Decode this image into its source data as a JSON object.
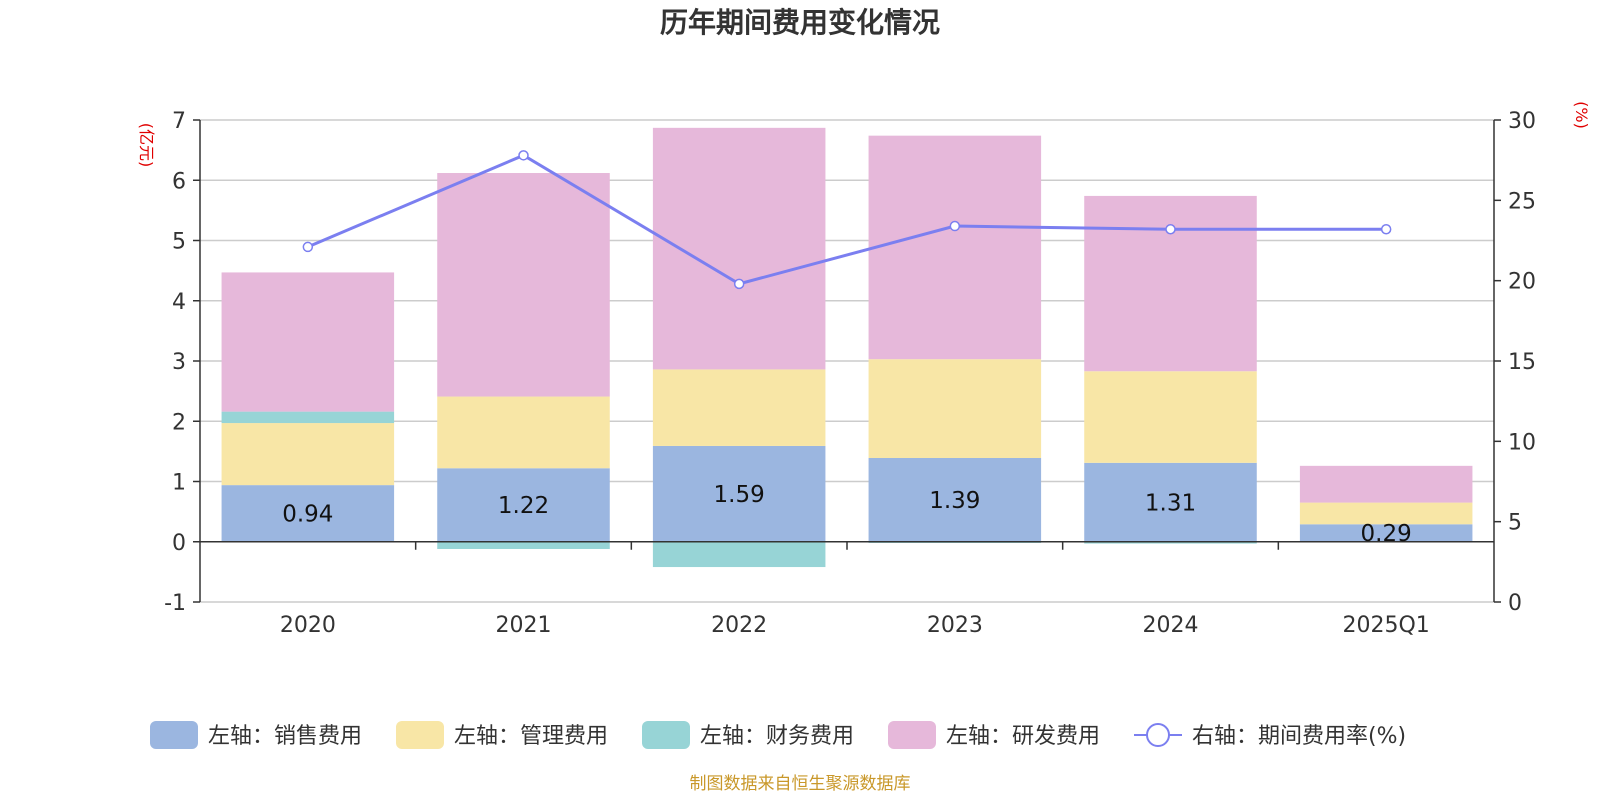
{
  "chart_data": {
    "type": "bar",
    "title": "历年期间费用变化情况",
    "categories": [
      "2020",
      "2021",
      "2022",
      "2023",
      "2024",
      "2025Q1"
    ],
    "left_axis": {
      "unit": "(亿元)",
      "ylim": [
        -1,
        7
      ],
      "ticks": [
        -1,
        0,
        1,
        2,
        3,
        4,
        5,
        6,
        7
      ]
    },
    "right_axis": {
      "unit": "(%)",
      "ylim": [
        0,
        30
      ],
      "ticks": [
        0,
        5,
        10,
        15,
        20,
        25,
        30
      ]
    },
    "series": [
      {
        "name": "左轴：销售费用",
        "axis": "left",
        "stack": "total",
        "color": "#9bb6e0",
        "values": [
          0.94,
          1.22,
          1.59,
          1.39,
          1.31,
          0.29
        ],
        "labels": [
          "0.94",
          "1.22",
          "1.59",
          "1.39",
          "1.31",
          "0.29"
        ]
      },
      {
        "name": "左轴：管理费用",
        "axis": "left",
        "stack": "total",
        "color": "#f8e6a6",
        "values": [
          1.03,
          1.19,
          1.27,
          1.64,
          1.52,
          0.36
        ]
      },
      {
        "name": "左轴：财务费用",
        "axis": "left",
        "stack": "total",
        "color": "#97d4d6",
        "values": [
          0.19,
          -0.12,
          -0.42,
          -0.02,
          -0.03,
          0.0
        ]
      },
      {
        "name": "左轴：研发费用",
        "axis": "left",
        "stack": "total",
        "color": "#e6b8da",
        "values": [
          2.31,
          3.71,
          4.01,
          3.71,
          2.91,
          0.61
        ]
      },
      {
        "name": "右轴：期间费用率(%)",
        "axis": "right",
        "type": "line",
        "color": "#7b7ff0",
        "values": [
          22.1,
          27.8,
          19.8,
          23.4,
          23.2,
          23.2
        ]
      }
    ],
    "legend_position": "bottom",
    "source": "制图数据来自恒生聚源数据库"
  }
}
